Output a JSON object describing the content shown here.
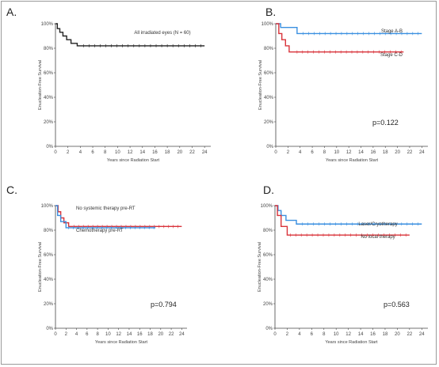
{
  "colors": {
    "black": "#222222",
    "blue": "#3a8fe0",
    "red": "#d9333a",
    "axis": "#444444",
    "border": "#9a9a9a"
  },
  "chart_data": [
    {
      "panel": "A.",
      "type": "line",
      "ylabel": "Enucleation-Free Survival",
      "xlabel": "Years since Radiation Start",
      "xlim": [
        0,
        25
      ],
      "ylim": [
        0,
        100
      ],
      "x_ticks": [
        "0",
        "2",
        "4",
        "6",
        "8",
        "10",
        "12",
        "14",
        "16",
        "18",
        "20",
        "22",
        "24"
      ],
      "y_ticks": [
        "0%",
        "20%",
        "40%",
        "60%",
        "80%",
        "100%"
      ],
      "series": [
        {
          "name": "All irradiated eyes (N = 60)",
          "color": "#222222",
          "steps": [
            [
              0,
              100
            ],
            [
              0.3,
              96
            ],
            [
              0.7,
              93
            ],
            [
              1.2,
              90
            ],
            [
              1.8,
              87
            ],
            [
              2.5,
              84
            ],
            [
              3.5,
              82
            ],
            [
              24,
              82
            ]
          ]
        }
      ]
    },
    {
      "panel": "B.",
      "type": "line",
      "ylabel": "Enucleation-Free Survival",
      "xlabel": "Years since Radiation Start",
      "xlim": [
        0,
        25
      ],
      "ylim": [
        0,
        100
      ],
      "x_ticks": [
        "0",
        "2",
        "4",
        "6",
        "8",
        "10",
        "12",
        "14",
        "16",
        "18",
        "20",
        "22",
        "24"
      ],
      "y_ticks": [
        "0%",
        "20%",
        "40%",
        "60%",
        "80%",
        "100%"
      ],
      "pvalue": "p=0.122",
      "series": [
        {
          "name": "Stage A-B",
          "color": "#3a8fe0",
          "steps": [
            [
              0,
              100
            ],
            [
              0.8,
              97
            ],
            [
              3.5,
              92
            ],
            [
              24,
              92
            ]
          ]
        },
        {
          "name": "Stage C-D",
          "color": "#d9333a",
          "steps": [
            [
              0,
              100
            ],
            [
              0.5,
              92
            ],
            [
              1,
              87
            ],
            [
              1.6,
              82
            ],
            [
              2.2,
              77
            ],
            [
              21,
              77
            ]
          ]
        }
      ]
    },
    {
      "panel": "C.",
      "type": "line",
      "ylabel": "Enucleation-Free Survival",
      "xlabel": "Years since Radiation Start",
      "xlim": [
        0,
        25
      ],
      "ylim": [
        0,
        100
      ],
      "x_ticks": [
        "0",
        "2",
        "4",
        "6",
        "8",
        "10",
        "12",
        "14",
        "16",
        "18",
        "20",
        "22",
        "24"
      ],
      "y_ticks": [
        "0%",
        "20%",
        "40%",
        "60%",
        "80%",
        "100%"
      ],
      "pvalue": "p=0.794",
      "series": [
        {
          "name": "No systemic therapy pre-RT",
          "color": "#d9333a",
          "steps": [
            [
              0,
              100
            ],
            [
              0.5,
              95
            ],
            [
              1,
              90
            ],
            [
              1.6,
              86
            ],
            [
              2.5,
              83
            ],
            [
              24,
              83
            ]
          ]
        },
        {
          "name": "Chemotherapy pre-RT",
          "color": "#3a8fe0",
          "steps": [
            [
              0,
              100
            ],
            [
              0.4,
              92
            ],
            [
              1,
              87
            ],
            [
              2,
              82
            ],
            [
              19,
              82
            ]
          ]
        }
      ]
    },
    {
      "panel": "D.",
      "type": "line",
      "ylabel": "Enucleation-Free Survival",
      "xlabel": "Years since Radiation Start",
      "xlim": [
        0,
        25
      ],
      "ylim": [
        0,
        100
      ],
      "x_ticks": [
        "0",
        "2",
        "4",
        "6",
        "8",
        "10",
        "12",
        "14",
        "16",
        "18",
        "20",
        "22",
        "24"
      ],
      "y_ticks": [
        "0%",
        "20%",
        "40%",
        "60%",
        "80%",
        "100%"
      ],
      "pvalue": "p=0.563",
      "series": [
        {
          "name": "Laser/Cryotherapy",
          "color": "#3a8fe0",
          "steps": [
            [
              0,
              100
            ],
            [
              0.5,
              96
            ],
            [
              1,
              92
            ],
            [
              1.8,
              88
            ],
            [
              3.5,
              85
            ],
            [
              24,
              85
            ]
          ]
        },
        {
          "name": "No local therapy",
          "color": "#d9333a",
          "steps": [
            [
              0,
              100
            ],
            [
              0.4,
              92
            ],
            [
              1,
              83
            ],
            [
              2,
              76
            ],
            [
              22,
              76
            ]
          ]
        }
      ]
    }
  ]
}
